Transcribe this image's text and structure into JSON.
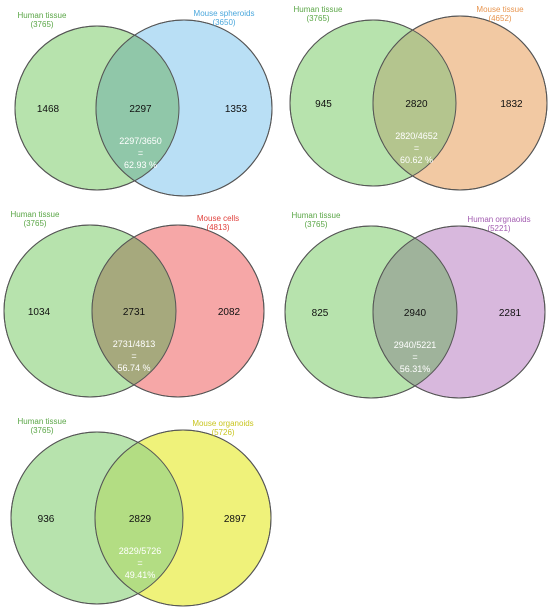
{
  "colors": {
    "left_fill": "#b7e3ad",
    "overlap_fill_default": "#9ab893",
    "outline": "#555555",
    "human_tissue_label": "#5aa646"
  },
  "diagrams": [
    {
      "left": {
        "label": "Human tissue",
        "count": "(3765)",
        "unique": "1468",
        "label_color": "#5aa646"
      },
      "right": {
        "label": "Mouse spheroids",
        "count": "(3650)",
        "unique": "1353",
        "label_color": "#4aa7dc",
        "fill": "#b9dff5"
      },
      "overlap": {
        "value": "2297",
        "ratio": "2297/3650",
        "equals": "=",
        "percent": "62.93 %",
        "fill": "#90c7a9"
      }
    },
    {
      "left": {
        "label": "Human tissue",
        "count": "(3765)",
        "unique": "945",
        "label_color": "#5aa646"
      },
      "right": {
        "label": "Mouse tissue",
        "count": "(4652)",
        "unique": "1832",
        "label_color": "#e8954f",
        "fill": "#f2c9a3"
      },
      "overlap": {
        "value": "2820",
        "ratio": "2820/4652",
        "equals": "=",
        "percent": "60.62 %",
        "fill": "#b4c58e"
      }
    },
    {
      "left": {
        "label": "Human tissue",
        "count": "(3765)",
        "unique": "1034",
        "label_color": "#5aa646"
      },
      "right": {
        "label": "Mouse cells",
        "count": "(4813)",
        "unique": "2082",
        "label_color": "#e0403c",
        "fill": "#f6a7a7"
      },
      "overlap": {
        "value": "2731",
        "ratio": "2731/4813",
        "equals": "=",
        "percent": "56.74 %",
        "fill": "#a6a97d"
      }
    },
    {
      "left": {
        "label": "Human tissue",
        "count": "(3765)",
        "unique": "825",
        "label_color": "#5aa646"
      },
      "right": {
        "label": "Human orgnaoids",
        "count": "(5221)",
        "unique": "2281",
        "label_color": "#a25bb0",
        "fill": "#d8b8dd"
      },
      "overlap": {
        "value": "2940",
        "ratio": "2940/5221",
        "equals": "=",
        "percent": "56.31%",
        "fill": "#9fb39b"
      }
    },
    {
      "left": {
        "label": "Human tissue",
        "count": "(3765)",
        "unique": "936",
        "label_color": "#5aa646"
      },
      "right": {
        "label": "Mouse organoids",
        "count": "(5726)",
        "unique": "2897",
        "label_color": "#c9c520",
        "fill": "#eff27a"
      },
      "overlap": {
        "value": "2829",
        "ratio": "2829/5726",
        "equals": "=",
        "percent": "49.41%",
        "fill": "#b3dd83"
      }
    }
  ]
}
